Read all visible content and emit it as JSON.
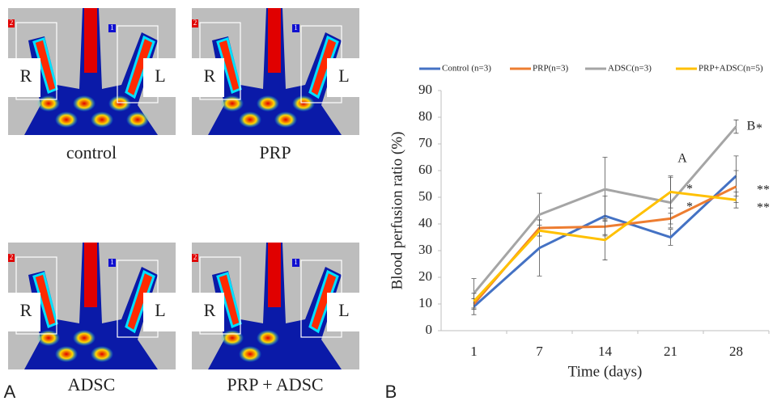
{
  "panels": [
    {
      "label": "control",
      "left": "R",
      "right": "L",
      "box_left": "2",
      "box_right": "1"
    },
    {
      "label": "PRP",
      "left": "R",
      "right": "L",
      "box_left": "2",
      "box_right": "1"
    },
    {
      "label": "ADSC",
      "left": "R",
      "right": "L",
      "box_left": "2",
      "box_right": "1"
    },
    {
      "label": "PRP + ADSC",
      "left": "R",
      "right": "L",
      "box_left": "2",
      "box_right": "1"
    }
  ],
  "panel_letters": [
    "A",
    "B"
  ],
  "chart_data": {
    "type": "line",
    "ylabel": "Blood perfusion ratio (%)",
    "xlabel": "Time (days)",
    "categories": [
      "1",
      "7",
      "14",
      "21",
      "28"
    ],
    "ylim": [
      0,
      90
    ],
    "yticks": [
      0,
      10,
      20,
      30,
      40,
      50,
      60,
      70,
      80,
      90
    ],
    "series": [
      {
        "name": "Control (n=3)",
        "color": "#4472c4",
        "values": [
          9,
          31,
          43,
          35,
          58
        ],
        "errors": [
          3,
          10.5,
          7.5,
          3,
          7.5
        ]
      },
      {
        "name": "PRP(n=3)",
        "color": "#ed7d31",
        "values": [
          10,
          38.5,
          39,
          42,
          54
        ],
        "errors": [
          2,
          3,
          3,
          2,
          6
        ]
      },
      {
        "name": "ADSC(n=3)",
        "color": "#a5a5a5",
        "values": [
          14,
          43.5,
          53,
          48,
          76.5
        ],
        "errors": [
          5.5,
          8,
          12,
          9.5,
          2.5
        ]
      },
      {
        "name": "PRP+ADSC(n=5)",
        "color": "#ffc000",
        "values": [
          11,
          37.5,
          34,
          52,
          49
        ],
        "errors": [
          3,
          2,
          7.5,
          6,
          3
        ]
      }
    ],
    "annotations": [
      "A",
      "B",
      "*",
      "*",
      "*",
      "**",
      "**"
    ],
    "legend": "top"
  }
}
